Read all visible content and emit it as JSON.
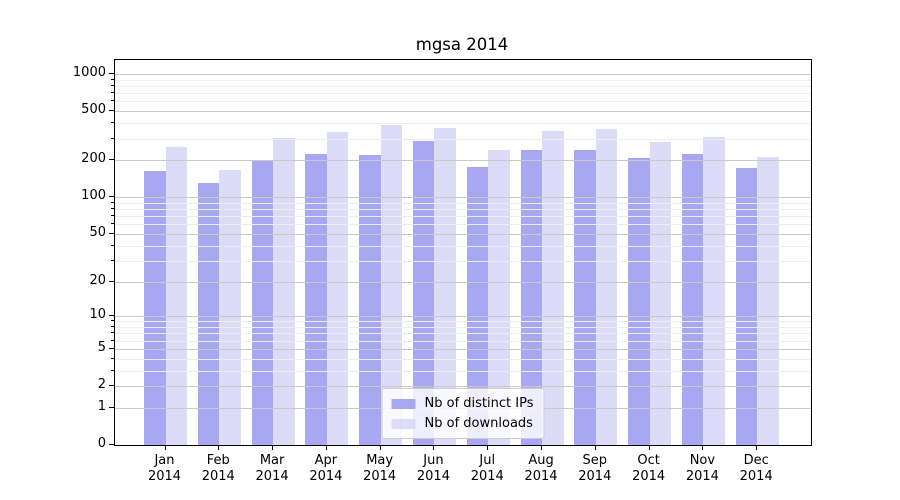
{
  "chart_data": {
    "type": "bar",
    "title": "mgsa 2014",
    "categories": [
      "Jan 2014",
      "Feb 2014",
      "Mar 2014",
      "Apr 2014",
      "May 2014",
      "Jun 2014",
      "Jul 2014",
      "Aug 2014",
      "Sep 2014",
      "Oct 2014",
      "Nov 2014",
      "Dec 2014"
    ],
    "series": [
      {
        "name": "Nb of distinct IPs",
        "color": "#a8a8f2",
        "values": [
          165,
          130,
          198,
          224,
          220,
          286,
          177,
          244,
          243,
          208,
          224,
          173
        ]
      },
      {
        "name": "Nb of downloads",
        "color": "#dcdcf9",
        "values": [
          255,
          166,
          306,
          341,
          390,
          365,
          242,
          347,
          358,
          284,
          310,
          213
        ]
      }
    ],
    "yscale": "log1p",
    "yticks": [
      0,
      1,
      2,
      5,
      10,
      20,
      50,
      100,
      200,
      500,
      1000
    ],
    "minor_tick_multiples": [
      3,
      4,
      6,
      7,
      8,
      9
    ],
    "minor_tick_decades": [
      1,
      10,
      100
    ],
    "ylim": [
      0,
      1300
    ],
    "xlabel": "",
    "ylabel": "",
    "grid": true,
    "grid_above_bars": true,
    "legend_position": "lower center"
  },
  "colors": {
    "background": "#ffffff",
    "spine": "#000000",
    "grid_major": "#c9c9c9",
    "grid_minor": "#ededed",
    "tick_text": "#000000",
    "legend_border": "#cccccc",
    "legend_background": "rgba(255,255,255,0.8)"
  },
  "legend": {
    "items": [
      "Nb of distinct IPs",
      "Nb of downloads"
    ]
  }
}
